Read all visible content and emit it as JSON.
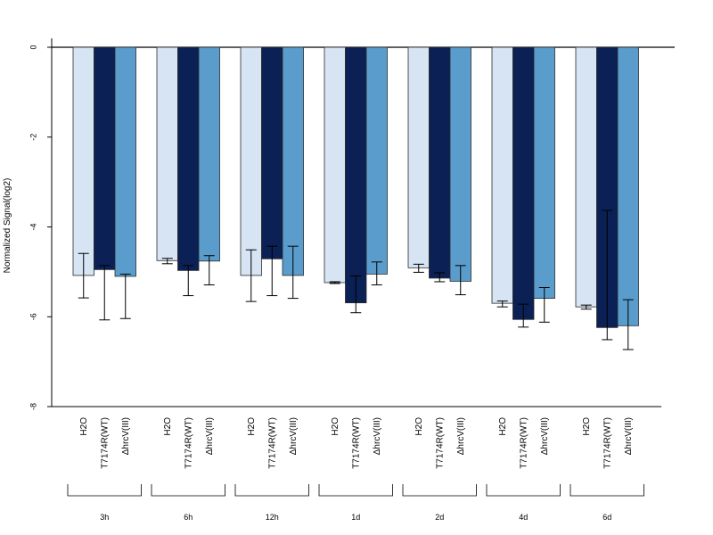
{
  "chart_data": {
    "type": "bar",
    "title": "",
    "ylabel": "Normalized Signal(log2)",
    "xlabel": "",
    "ylim": [
      -8,
      0
    ],
    "yticks": [
      0,
      -2,
      -4,
      -6,
      -8
    ],
    "ytick_labels": [
      "0",
      "-2",
      "-4",
      "-6",
      "-8"
    ],
    "grid": false,
    "legend": "none",
    "treatments": [
      "H2O",
      "T7174R(WT)",
      "ΔhrcV(III)"
    ],
    "colors": [
      "#d6e4f3",
      "#0b2055",
      "#5a9dcc"
    ],
    "groups": [
      {
        "label": "3h",
        "values": [
          -5.08,
          -4.95,
          -5.1
        ],
        "err_low": [
          -5.58,
          -6.07,
          -6.04
        ],
        "err_high": [
          -4.59,
          -4.86,
          -5.05
        ]
      },
      {
        "label": "6h",
        "values": [
          -4.75,
          -4.97,
          -4.76
        ],
        "err_low": [
          -4.82,
          -5.53,
          -5.29
        ],
        "err_high": [
          -4.7,
          -4.86,
          -4.64
        ]
      },
      {
        "label": "12h",
        "values": [
          -5.08,
          -4.71,
          -5.08
        ],
        "err_low": [
          -5.66,
          -5.53,
          -5.59
        ],
        "err_high": [
          -4.51,
          -4.43,
          -4.43
        ]
      },
      {
        "label": "1d",
        "values": [
          -5.24,
          -5.69,
          -5.05
        ],
        "err_low": [
          -5.26,
          -5.91,
          -5.29
        ],
        "err_high": [
          -5.22,
          -5.09,
          -4.78
        ]
      },
      {
        "label": "2d",
        "values": [
          -4.91,
          -5.14,
          -5.21
        ],
        "err_low": [
          -5.01,
          -5.22,
          -5.51
        ],
        "err_high": [
          -4.83,
          -5.02,
          -4.86
        ]
      },
      {
        "label": "4d",
        "values": [
          -5.7,
          -6.06,
          -5.59
        ],
        "err_low": [
          -5.78,
          -6.23,
          -6.12
        ],
        "err_high": [
          -5.65,
          -5.72,
          -5.35
        ]
      },
      {
        "label": "6d",
        "values": [
          -5.78,
          -6.24,
          -6.2
        ],
        "err_low": [
          -5.83,
          -6.51,
          -6.73
        ],
        "err_high": [
          -5.74,
          -3.63,
          -5.62
        ]
      }
    ]
  }
}
